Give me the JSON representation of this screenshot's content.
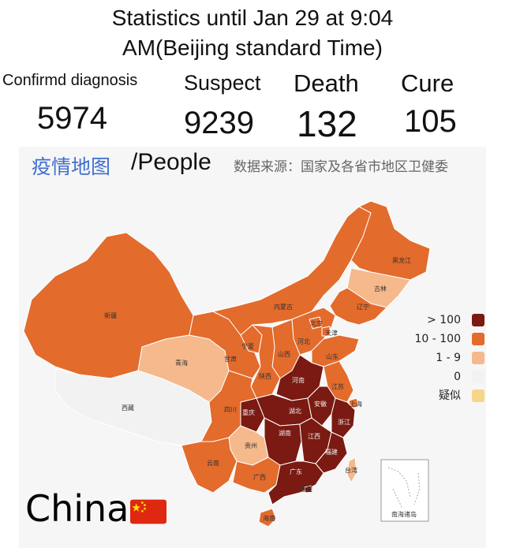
{
  "header": {
    "line1": "Statistics until Jan 29 at 9:04",
    "line2": "AM(Beijing standard Time)"
  },
  "stats": {
    "confirmed": {
      "label": "Confirmd diagnosis",
      "value": "5974"
    },
    "suspect": {
      "label": "Suspect",
      "value": "9239"
    },
    "death": {
      "label": "Death",
      "value": "132"
    },
    "cure": {
      "label": "Cure",
      "value": "105"
    }
  },
  "map_header": {
    "title": "疫情地图",
    "unit": "/People",
    "source": "数据来源：国家及各省市地区卫健委"
  },
  "legend": [
    {
      "label": "> 100",
      "color": "#7a1a12"
    },
    {
      "label": "10 - 100",
      "color": "#e36b2c"
    },
    {
      "label": "1 - 9",
      "color": "#f5b98c"
    },
    {
      "label": "0",
      "color": "#f2f2f2"
    },
    {
      "label": "疑似",
      "color": "#f7d589"
    }
  ],
  "provinces": {
    "heilongjiang": "黑龙江",
    "jilin": "吉林",
    "liaoning": "辽宁",
    "neimenggu": "内蒙古",
    "beijing": "北京",
    "tianjin": "天津",
    "hebei": "河北",
    "shanxi": "山西",
    "shandong": "山东",
    "henan": "河南",
    "shaanxi": "陕西",
    "ningxia": "宁夏",
    "gansu": "甘肃",
    "qinghai": "青海",
    "xinjiang": "新疆",
    "xizang": "西藏",
    "sichuan": "四川",
    "chongqing": "重庆",
    "hubei": "湖北",
    "anhui": "安徽",
    "jiangsu": "江苏",
    "shanghai": "上海",
    "zhejiang": "浙江",
    "jiangxi": "江西",
    "hunan": "湖南",
    "guizhou": "贵州",
    "yunnan": "云南",
    "guangxi": "广西",
    "guangdong": "广东",
    "fujian": "福建",
    "taiwan": "台湾",
    "hainan": "海南",
    "xianggang": "香港"
  },
  "inset_label": "南海诸岛",
  "country": "China",
  "flag_icon": "china-flag-icon",
  "colors": {
    "dark": "#7a1a12",
    "mid": "#e36b2c",
    "light": "#f5b98c",
    "none": "#f2f2f2"
  }
}
